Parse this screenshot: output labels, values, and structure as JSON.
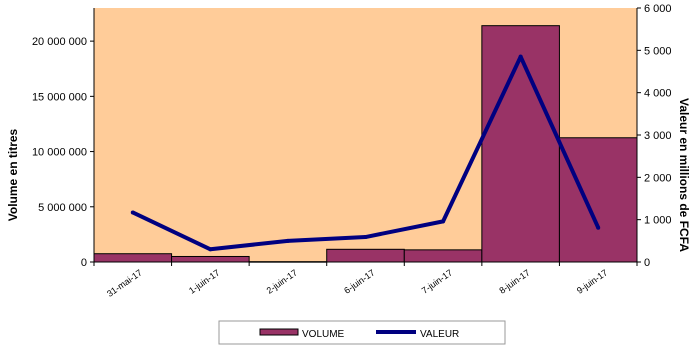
{
  "chart_data": {
    "type": "bar",
    "categories": [
      "31-mai-17",
      "1-juin-17",
      "2-juin-17",
      "6-juin-17",
      "7-juin-17",
      "8-juin-17",
      "9-juin-17"
    ],
    "series": [
      {
        "name": "VOLUME",
        "type": "bar",
        "axis": "left",
        "values": [
          750000,
          500000,
          30000,
          1150000,
          1100000,
          21400000,
          11250000
        ]
      },
      {
        "name": "VALEUR",
        "type": "line",
        "axis": "right",
        "values": [
          1170,
          300,
          500,
          590,
          960,
          4850,
          810
        ]
      }
    ],
    "ylabel": "Volume en titres",
    "y2label": "Valeur en millions de FCFA",
    "ylim": [
      0,
      23000000
    ],
    "y2lim": [
      0,
      6000
    ],
    "yticks": [
      "0",
      "5 000 000",
      "10 000 000",
      "15 000 000",
      "20 000 000"
    ],
    "y2ticks": [
      "0",
      "1 000",
      "2 000",
      "3 000",
      "4 000",
      "5 000",
      "6 000"
    ],
    "legend_position": "bottom",
    "colors": {
      "plot_background": "#FFCC99",
      "bar_fill": "#993366",
      "line": "#000080"
    }
  }
}
